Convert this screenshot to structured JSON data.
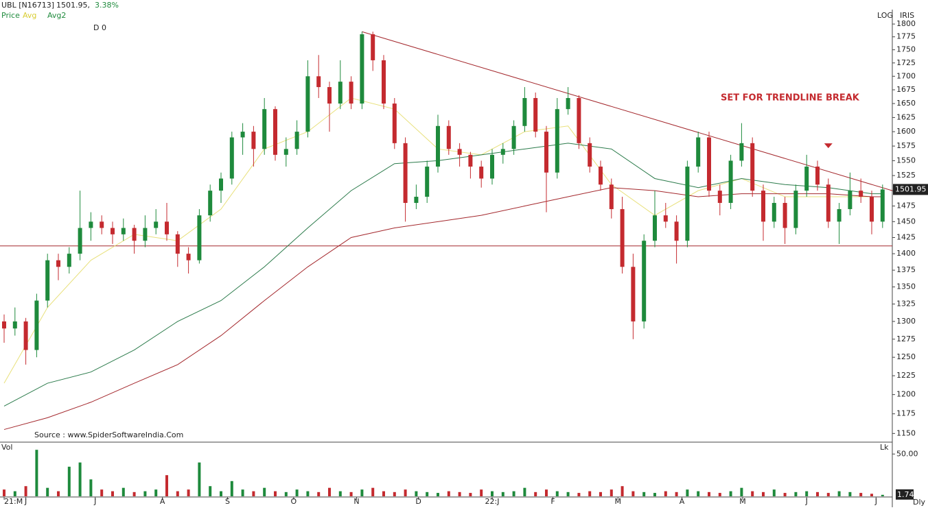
{
  "chart_data": {
    "type": "candlestick",
    "title": "UBL [N16713]",
    "last_price_text": "1501.95,",
    "change": "3.38%",
    "price_label": "Price",
    "interval": "D 0",
    "scale_label": "LOG",
    "brand": "IRIS",
    "annotation": "SET FOR TRENDLINE BREAK",
    "source": "Source : www.SpiderSoftwareIndia.Com",
    "period_label": "Dly",
    "log_scale": true,
    "up_color": "#1e8a3c",
    "down_color": "#c42a2f",
    "ylim": [
      1140,
      1815
    ],
    "yticks": [
      1150,
      1175,
      1200,
      1225,
      1250,
      1275,
      1300,
      1325,
      1350,
      1375,
      1400,
      1425,
      1450,
      1475,
      1500,
      1525,
      1550,
      1575,
      1600,
      1625,
      1650,
      1675,
      1700,
      1725,
      1750,
      1775,
      1800
    ],
    "xticks": [
      {
        "value": 0,
        "label": "21:M"
      },
      {
        "value": 2,
        "label": "J"
      },
      {
        "value": 8.4,
        "label": "J"
      },
      {
        "value": 14.6,
        "label": "A"
      },
      {
        "value": 20.6,
        "label": "S"
      },
      {
        "value": 26.7,
        "label": "O"
      },
      {
        "value": 32.5,
        "label": "N"
      },
      {
        "value": 38.2,
        "label": "D"
      },
      {
        "value": 45,
        "label": "22:J"
      },
      {
        "value": 50.6,
        "label": "F"
      },
      {
        "value": 56.6,
        "label": "M"
      },
      {
        "value": 62.5,
        "label": "A"
      },
      {
        "value": 68.1,
        "label": "M"
      },
      {
        "value": 74,
        "label": "J"
      },
      {
        "value": 80.4,
        "label": "J"
      }
    ],
    "ohlc": [
      [
        1300,
        1310,
        1270,
        1290
      ],
      [
        1290,
        1320,
        1280,
        1300
      ],
      [
        1300,
        1305,
        1240,
        1260
      ],
      [
        1260,
        1340,
        1250,
        1330
      ],
      [
        1330,
        1400,
        1320,
        1390
      ],
      [
        1390,
        1400,
        1360,
        1380
      ],
      [
        1380,
        1410,
        1370,
        1400
      ],
      [
        1400,
        1500,
        1390,
        1440
      ],
      [
        1440,
        1465,
        1420,
        1450
      ],
      [
        1450,
        1460,
        1430,
        1440
      ],
      [
        1440,
        1450,
        1415,
        1430
      ],
      [
        1430,
        1455,
        1420,
        1440
      ],
      [
        1440,
        1445,
        1400,
        1420
      ],
      [
        1420,
        1460,
        1410,
        1440
      ],
      [
        1440,
        1470,
        1430,
        1450
      ],
      [
        1450,
        1480,
        1420,
        1430
      ],
      [
        1430,
        1435,
        1380,
        1400
      ],
      [
        1400,
        1410,
        1370,
        1390
      ],
      [
        1390,
        1470,
        1385,
        1460
      ],
      [
        1460,
        1510,
        1450,
        1500
      ],
      [
        1500,
        1530,
        1480,
        1520
      ],
      [
        1520,
        1600,
        1510,
        1590
      ],
      [
        1590,
        1615,
        1560,
        1600
      ],
      [
        1600,
        1610,
        1540,
        1570
      ],
      [
        1570,
        1660,
        1560,
        1640
      ],
      [
        1640,
        1645,
        1550,
        1560
      ],
      [
        1560,
        1590,
        1540,
        1570
      ],
      [
        1570,
        1620,
        1560,
        1600
      ],
      [
        1600,
        1730,
        1590,
        1700
      ],
      [
        1700,
        1740,
        1660,
        1680
      ],
      [
        1680,
        1690,
        1600,
        1650
      ],
      [
        1650,
        1730,
        1640,
        1690
      ],
      [
        1690,
        1700,
        1640,
        1650
      ],
      [
        1650,
        1785,
        1640,
        1780
      ],
      [
        1780,
        1785,
        1710,
        1730
      ],
      [
        1730,
        1740,
        1640,
        1650
      ],
      [
        1650,
        1660,
        1570,
        1580
      ],
      [
        1580,
        1590,
        1450,
        1480
      ],
      [
        1480,
        1510,
        1470,
        1490
      ],
      [
        1490,
        1550,
        1480,
        1540
      ],
      [
        1540,
        1630,
        1530,
        1610
      ],
      [
        1610,
        1620,
        1560,
        1570
      ],
      [
        1570,
        1580,
        1540,
        1560
      ],
      [
        1560,
        1565,
        1520,
        1540
      ],
      [
        1540,
        1550,
        1505,
        1520
      ],
      [
        1520,
        1570,
        1510,
        1560
      ],
      [
        1560,
        1580,
        1545,
        1570
      ],
      [
        1570,
        1620,
        1560,
        1610
      ],
      [
        1610,
        1680,
        1600,
        1660
      ],
      [
        1660,
        1670,
        1590,
        1600
      ],
      [
        1600,
        1610,
        1465,
        1530
      ],
      [
        1530,
        1660,
        1520,
        1640
      ],
      [
        1640,
        1680,
        1630,
        1660
      ],
      [
        1660,
        1665,
        1570,
        1580
      ],
      [
        1580,
        1590,
        1530,
        1540
      ],
      [
        1540,
        1550,
        1500,
        1510
      ],
      [
        1510,
        1520,
        1455,
        1470
      ],
      [
        1470,
        1490,
        1370,
        1380
      ],
      [
        1380,
        1400,
        1275,
        1300
      ],
      [
        1300,
        1430,
        1290,
        1420
      ],
      [
        1420,
        1500,
        1410,
        1460
      ],
      [
        1460,
        1480,
        1440,
        1450
      ],
      [
        1450,
        1460,
        1385,
        1420
      ],
      [
        1420,
        1550,
        1410,
        1540
      ],
      [
        1540,
        1600,
        1530,
        1590
      ],
      [
        1590,
        1600,
        1490,
        1500
      ],
      [
        1500,
        1510,
        1460,
        1480
      ],
      [
        1480,
        1560,
        1470,
        1550
      ],
      [
        1550,
        1615,
        1540,
        1580
      ],
      [
        1580,
        1590,
        1490,
        1500
      ],
      [
        1500,
        1510,
        1420,
        1450
      ],
      [
        1450,
        1490,
        1440,
        1480
      ],
      [
        1480,
        1490,
        1415,
        1440
      ],
      [
        1440,
        1510,
        1430,
        1500
      ],
      [
        1500,
        1560,
        1490,
        1540
      ],
      [
        1540,
        1550,
        1500,
        1510
      ],
      [
        1510,
        1520,
        1440,
        1450
      ],
      [
        1450,
        1480,
        1415,
        1470
      ],
      [
        1470,
        1530,
        1460,
        1500
      ],
      [
        1500,
        1520,
        1480,
        1490
      ],
      [
        1490,
        1500,
        1430,
        1450
      ],
      [
        1450,
        1510,
        1440,
        1501.95
      ]
    ],
    "ma_x": [
      0,
      4,
      8,
      12,
      16,
      20,
      24,
      28,
      32,
      36,
      40,
      44,
      48,
      52,
      56,
      60,
      64,
      68,
      72,
      76,
      80,
      81
    ],
    "overlays": [
      {
        "name": "Avg",
        "color": "#e8e07a",
        "values": [
          1215,
          1320,
          1390,
          1430,
          1420,
          1470,
          1570,
          1600,
          1660,
          1640,
          1570,
          1560,
          1600,
          1610,
          1510,
          1460,
          1500,
          1520,
          1490,
          1490,
          1490,
          1490
        ]
      },
      {
        "name": "Avg2",
        "color": "#2a7a4a",
        "values": [
          1185,
          1215,
          1230,
          1260,
          1300,
          1330,
          1380,
          1440,
          1500,
          1545,
          1550,
          1560,
          1570,
          1580,
          1570,
          1520,
          1505,
          1520,
          1510,
          1505,
          1495,
          1495
        ]
      },
      {
        "color": "#a3262b",
        "values": [
          1155,
          1170,
          1190,
          1215,
          1240,
          1280,
          1330,
          1380,
          1425,
          1440,
          1450,
          1460,
          1475,
          1490,
          1505,
          1500,
          1490,
          1495,
          1495,
          1495,
          1490,
          1490
        ]
      }
    ],
    "trendline": {
      "color": "#a3262b",
      "x": [
        33,
        81.9
      ],
      "values": [
        1785,
        1500
      ]
    },
    "support_level": 1412,
    "marker_value": 1575,
    "marker_x": 76,
    "volume": {
      "label": "Vol",
      "unit_label": "Lk",
      "color": "#1e8a3c",
      "down_color": "#c42a2f",
      "ylim": [
        0,
        60
      ],
      "yticks": [
        {
          "value": 50,
          "label": "50.00"
        }
      ],
      "values": [
        8,
        6,
        12,
        55,
        10,
        6,
        35,
        40,
        20,
        8,
        6,
        10,
        5,
        6,
        8,
        25,
        6,
        8,
        40,
        12,
        6,
        18,
        8,
        6,
        10,
        6,
        5,
        8,
        6,
        5,
        10,
        6,
        5,
        8,
        10,
        6,
        5,
        8,
        6,
        5,
        4,
        6,
        5,
        4,
        8,
        6,
        5,
        6,
        10,
        5,
        8,
        6,
        5,
        4,
        6,
        5,
        8,
        12,
        6,
        5,
        4,
        6,
        5,
        8,
        6,
        5,
        4,
        6,
        10,
        6,
        5,
        8,
        4,
        5,
        6,
        5,
        4,
        6,
        5,
        4,
        3,
        1.74
      ]
    }
  }
}
